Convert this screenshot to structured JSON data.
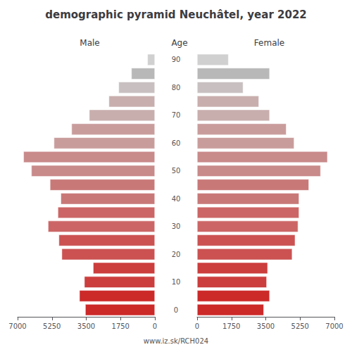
{
  "chart_data": {
    "type": "bar",
    "orientation": "horizontal",
    "title": "demographic pyramid Neuchâtel, year 2022",
    "ylabel": "Age",
    "annotations": [
      "www.iz.sk/RCH024"
    ],
    "categories": [
      "0",
      null,
      "10",
      null,
      "20",
      null,
      "30",
      null,
      "40",
      null,
      "50",
      null,
      "60",
      null,
      "70",
      null,
      "80",
      null,
      "90"
    ],
    "series": [
      {
        "name": "Male",
        "values": [
          3550,
          3850,
          3600,
          3150,
          4750,
          4900,
          5450,
          4950,
          4800,
          5350,
          6300,
          6700,
          5150,
          4250,
          3350,
          2350,
          1850,
          1200,
          380
        ],
        "colors": [
          "#cc2929",
          "#cc2929",
          "#cc3d3d",
          "#cc3d3d",
          "#cc5252",
          "#cc5252",
          "#cc6666",
          "#cc6666",
          "#c97878",
          "#c97878",
          "#c98a8a",
          "#c98a8a",
          "#c99c9c",
          "#c99c9c",
          "#c9aeae",
          "#c9aeae",
          "#c8c0c0",
          "#b8b8b8",
          "#d0d0d0"
        ]
      },
      {
        "name": "Female",
        "values": [
          3400,
          3700,
          3550,
          3600,
          4850,
          5000,
          5150,
          5200,
          5200,
          5700,
          6300,
          6650,
          4950,
          4550,
          3700,
          3150,
          2350,
          3700,
          1600
        ],
        "colors": [
          "#cc2929",
          "#cc2929",
          "#cc3d3d",
          "#cc3d3d",
          "#cc5252",
          "#cc5252",
          "#cc6666",
          "#cc6666",
          "#c97878",
          "#c97878",
          "#c98a8a",
          "#c98a8a",
          "#c99c9c",
          "#c99c9c",
          "#c9aeae",
          "#c9aeae",
          "#c8c0c0",
          "#b8b8b8",
          "#d0d0d0"
        ]
      }
    ],
    "xlim": [
      0,
      7000
    ],
    "xticks": [
      0,
      1750,
      3500,
      5250,
      7000
    ],
    "grid": false
  }
}
